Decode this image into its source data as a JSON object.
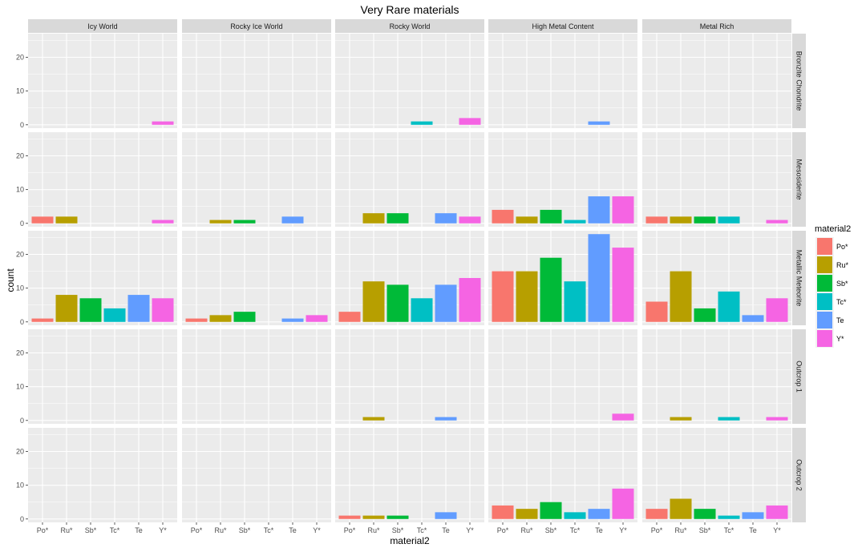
{
  "chart_data": {
    "type": "bar",
    "title": "Very Rare materials",
    "xlabel": "material2",
    "ylabel": "count",
    "categories": [
      "Po*",
      "Ru*",
      "Sb*",
      "Tc*",
      "Te",
      "Y*"
    ],
    "ylim": [
      -1,
      27
    ],
    "y_ticks": [
      0,
      10,
      20
    ],
    "column_facets": [
      "Icy World",
      "Rocky Ice World",
      "Rocky World",
      "High Metal Content",
      "Metal Rich"
    ],
    "row_facets": [
      "Bronzite Chondrite",
      "Mesosiderite",
      "Metallic Meteorite",
      "Outcrop 1",
      "Outcrop 2"
    ],
    "grid": true,
    "legend": {
      "title": "material2",
      "placement": "right",
      "entries": [
        {
          "label": "Po*",
          "color": "#F8766D"
        },
        {
          "label": "Ru*",
          "color": "#B79F00"
        },
        {
          "label": "Sb*",
          "color": "#00BA38"
        },
        {
          "label": "Tc*",
          "color": "#00BFC4"
        },
        {
          "label": "Te",
          "color": "#619CFF"
        },
        {
          "label": "Y*",
          "color": "#F564E3"
        }
      ]
    },
    "values": [
      [
        [
          0,
          0,
          0,
          0,
          0,
          1
        ],
        [
          0,
          0,
          0,
          0,
          0,
          0
        ],
        [
          0,
          0,
          0,
          1,
          0,
          2
        ],
        [
          0,
          0,
          0,
          0,
          1,
          0
        ],
        [
          0,
          0,
          0,
          0,
          0,
          0
        ]
      ],
      [
        [
          2,
          2,
          0,
          0,
          0,
          1
        ],
        [
          0,
          1,
          1,
          0,
          2,
          0
        ],
        [
          0,
          3,
          3,
          0,
          3,
          2
        ],
        [
          4,
          2,
          4,
          1,
          8,
          8
        ],
        [
          2,
          2,
          2,
          2,
          0,
          1
        ]
      ],
      [
        [
          1,
          8,
          7,
          4,
          8,
          7
        ],
        [
          1,
          2,
          3,
          0,
          1,
          2
        ],
        [
          3,
          12,
          11,
          7,
          11,
          13
        ],
        [
          15,
          15,
          19,
          12,
          26,
          22
        ],
        [
          6,
          15,
          4,
          9,
          2,
          7
        ]
      ],
      [
        [
          0,
          0,
          0,
          0,
          0,
          0
        ],
        [
          0,
          0,
          0,
          0,
          0,
          0
        ],
        [
          0,
          1,
          0,
          0,
          1,
          0
        ],
        [
          0,
          0,
          0,
          0,
          0,
          2
        ],
        [
          0,
          1,
          0,
          1,
          0,
          1
        ]
      ],
      [
        [
          0,
          0,
          0,
          0,
          0,
          0
        ],
        [
          0,
          0,
          0,
          0,
          0,
          0
        ],
        [
          1,
          1,
          1,
          0,
          2,
          0
        ],
        [
          4,
          3,
          5,
          2,
          3,
          9
        ],
        [
          3,
          6,
          3,
          1,
          2,
          4
        ]
      ]
    ]
  }
}
